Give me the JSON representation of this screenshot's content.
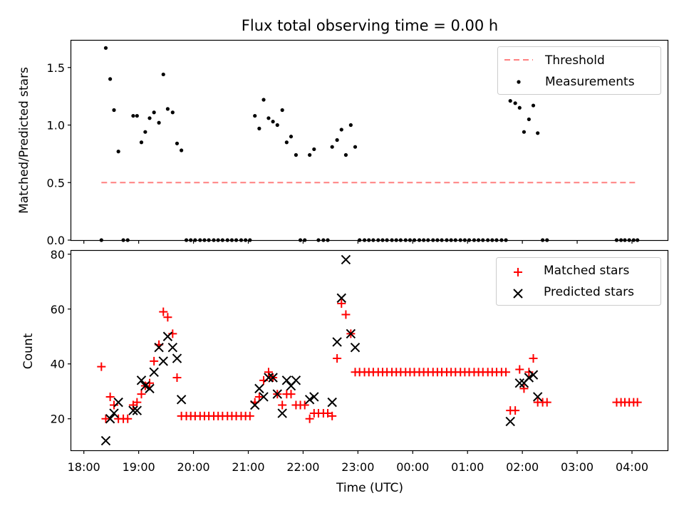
{
  "chart_data": [
    {
      "type": "scatter",
      "title": "Flux total observing time = 0.00 h",
      "xlabel": "",
      "ylabel": "Matched/Predicted stars",
      "xlim": [
        17.77,
        28.65
      ],
      "ylim": [
        0,
        1.74
      ],
      "yticks": [
        0.0,
        0.5,
        1.0,
        1.5
      ],
      "ytick_labels": [
        "0.0",
        "0.5",
        "1.0",
        "1.5"
      ],
      "threshold": {
        "name": "Threshold",
        "value": 0.5,
        "x_range": [
          18.32,
          28.07
        ],
        "color": "#ff8080"
      },
      "legend_position": "top-right",
      "series": [
        {
          "name": "Threshold",
          "kind": "dashed-line",
          "color": "#ff8080"
        },
        {
          "name": "Measurements",
          "kind": "dot",
          "color": "#000000",
          "x": [
            18.32,
            18.4,
            18.48,
            18.55,
            18.63,
            18.72,
            18.8,
            18.9,
            18.97,
            19.05,
            19.12,
            19.2,
            19.28,
            19.37,
            19.45,
            19.53,
            19.62,
            19.7,
            19.78,
            19.87,
            19.95,
            20.03,
            20.12,
            20.2,
            20.28,
            20.37,
            20.45,
            20.53,
            20.62,
            20.7,
            20.78,
            20.87,
            20.95,
            21.03,
            21.12,
            21.2,
            21.28,
            21.37,
            21.45,
            21.53,
            21.62,
            21.7,
            21.78,
            21.87,
            21.95,
            22.03,
            22.12,
            22.2,
            22.28,
            22.37,
            22.45,
            22.53,
            22.62,
            22.7,
            22.78,
            22.87,
            22.95,
            23.03,
            23.12,
            23.2,
            23.28,
            23.37,
            23.45,
            23.53,
            23.62,
            23.7,
            23.78,
            23.87,
            23.95,
            24.03,
            24.12,
            24.2,
            24.28,
            24.37,
            24.45,
            24.53,
            24.62,
            24.7,
            24.78,
            24.87,
            24.95,
            25.03,
            25.12,
            25.2,
            25.28,
            25.37,
            25.45,
            25.53,
            25.62,
            25.7,
            25.78,
            25.87,
            25.95,
            26.03,
            26.12,
            26.2,
            26.28,
            26.37,
            26.45,
            27.72,
            27.8,
            27.87,
            27.95,
            28.03,
            28.1
          ],
          "y": [
            0.0,
            1.67,
            1.4,
            1.13,
            0.77,
            0.0,
            0.0,
            1.08,
            1.08,
            0.85,
            0.94,
            1.06,
            1.11,
            1.02,
            1.44,
            1.14,
            1.11,
            0.84,
            0.78,
            0.0,
            0.0,
            0.0,
            0.0,
            0.0,
            0.0,
            0.0,
            0.0,
            0.0,
            0.0,
            0.0,
            0.0,
            0.0,
            0.0,
            0.0,
            1.08,
            0.97,
            1.22,
            1.06,
            1.03,
            1.0,
            1.13,
            0.85,
            0.9,
            0.74,
            0.0,
            0.0,
            0.74,
            0.79,
            0.0,
            0.0,
            0.0,
            0.81,
            0.87,
            0.96,
            0.74,
            1.0,
            0.81,
            0.0,
            0.0,
            0.0,
            0.0,
            0.0,
            0.0,
            0.0,
            0.0,
            0.0,
            0.0,
            0.0,
            0.0,
            0.0,
            0.0,
            0.0,
            0.0,
            0.0,
            0.0,
            0.0,
            0.0,
            0.0,
            0.0,
            0.0,
            0.0,
            0.0,
            0.0,
            0.0,
            0.0,
            0.0,
            0.0,
            0.0,
            0.0,
            0.0,
            1.21,
            1.19,
            1.15,
            0.94,
            1.05,
            1.17,
            0.93,
            0.0,
            0.0,
            0.0,
            0.0,
            0.0,
            0.0,
            0.0,
            0.0
          ]
        }
      ]
    },
    {
      "type": "scatter",
      "title": "",
      "xlabel": "Time (UTC)",
      "ylabel": "Count",
      "xlim": [
        17.77,
        28.65
      ],
      "ylim": [
        8.5,
        81.5
      ],
      "yticks": [
        20,
        40,
        60,
        80
      ],
      "ytick_labels": [
        "20",
        "40",
        "60",
        "80"
      ],
      "xticks": [
        18,
        19,
        20,
        21,
        22,
        23,
        24,
        25,
        26,
        27,
        28
      ],
      "xtick_labels": [
        "18:00",
        "19:00",
        "20:00",
        "21:00",
        "22:00",
        "23:00",
        "00:00",
        "01:00",
        "02:00",
        "03:00",
        "04:00"
      ],
      "legend_position": "top-right",
      "series": [
        {
          "name": "Matched stars",
          "kind": "plus",
          "color": "#ff0000",
          "x": [
            18.32,
            18.4,
            18.48,
            18.55,
            18.63,
            18.72,
            18.8,
            18.9,
            18.97,
            19.05,
            19.12,
            19.2,
            19.28,
            19.37,
            19.45,
            19.53,
            19.62,
            19.7,
            19.78,
            19.87,
            19.95,
            20.03,
            20.12,
            20.2,
            20.28,
            20.37,
            20.45,
            20.53,
            20.62,
            20.7,
            20.78,
            20.87,
            20.95,
            21.03,
            21.12,
            21.2,
            21.28,
            21.37,
            21.45,
            21.53,
            21.62,
            21.7,
            21.78,
            21.87,
            21.95,
            22.03,
            22.12,
            22.2,
            22.28,
            22.37,
            22.45,
            22.53,
            22.62,
            22.7,
            22.78,
            22.87,
            22.95,
            23.03,
            23.12,
            23.2,
            23.28,
            23.37,
            23.45,
            23.53,
            23.62,
            23.7,
            23.78,
            23.87,
            23.95,
            24.03,
            24.12,
            24.2,
            24.28,
            24.37,
            24.45,
            24.53,
            24.62,
            24.7,
            24.78,
            24.87,
            24.95,
            25.03,
            25.12,
            25.2,
            25.28,
            25.37,
            25.45,
            25.53,
            25.62,
            25.7,
            25.78,
            25.87,
            25.95,
            26.03,
            26.12,
            26.2,
            26.28,
            26.37,
            26.45,
            27.72,
            27.8,
            27.87,
            27.95,
            28.03,
            28.1
          ],
          "y": [
            39,
            20,
            28,
            25,
            20,
            20,
            20,
            25,
            26,
            29,
            32,
            33,
            41,
            47,
            59,
            57,
            51,
            35,
            21,
            21,
            21,
            21,
            21,
            21,
            21,
            21,
            21,
            21,
            21,
            21,
            21,
            21,
            21,
            21,
            26,
            28,
            34,
            37,
            35,
            29,
            25,
            29,
            29,
            25,
            25,
            25,
            20,
            22,
            22,
            22,
            22,
            21,
            42,
            62,
            58,
            51,
            37,
            37,
            37,
            37,
            37,
            37,
            37,
            37,
            37,
            37,
            37,
            37,
            37,
            37,
            37,
            37,
            37,
            37,
            37,
            37,
            37,
            37,
            37,
            37,
            37,
            37,
            37,
            37,
            37,
            37,
            37,
            37,
            37,
            37,
            23,
            23,
            38,
            31,
            37,
            42,
            26,
            26,
            26,
            26,
            26,
            26,
            26,
            26,
            26
          ]
        },
        {
          "name": "Predicted stars",
          "kind": "cross",
          "color": "#000000",
          "x": [
            18.4,
            18.48,
            18.55,
            18.63,
            18.9,
            18.97,
            19.05,
            19.12,
            19.2,
            19.28,
            19.37,
            19.45,
            19.53,
            19.62,
            19.7,
            19.78,
            21.12,
            21.2,
            21.28,
            21.37,
            21.45,
            21.53,
            21.62,
            21.7,
            21.78,
            21.87,
            22.12,
            22.2,
            22.53,
            22.62,
            22.7,
            22.78,
            22.87,
            22.95,
            25.78,
            25.95,
            26.03,
            26.12,
            26.2,
            26.28
          ],
          "y": [
            12,
            20,
            22,
            26,
            23,
            23,
            34,
            32,
            31,
            37,
            46,
            41,
            50,
            46,
            42,
            27,
            25,
            31,
            28,
            35,
            35,
            29,
            22,
            34,
            32,
            34,
            27,
            28,
            26,
            48,
            64,
            78,
            51,
            46,
            19,
            33,
            33,
            35,
            36,
            28
          ]
        }
      ]
    }
  ]
}
